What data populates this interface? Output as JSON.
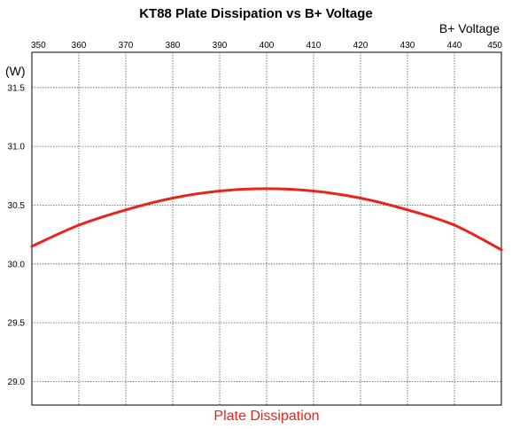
{
  "chart_data": {
    "type": "line",
    "title": "KT88 Plate Dissipation vs B+ Voltage",
    "xlabel": "B+ Voltage",
    "ylabel": "(W)",
    "xlim": [
      350,
      450
    ],
    "ylim": [
      28.8,
      31.8
    ],
    "xticks": [
      "350",
      "360",
      "370",
      "380",
      "390",
      "400",
      "410",
      "420",
      "430",
      "440",
      "450"
    ],
    "yticks": [
      "29.0",
      "29.5",
      "30.0",
      "30.5",
      "31.0",
      "31.5"
    ],
    "x_axis_position": "top",
    "grid": true,
    "legend": "bottom-center",
    "colors": {
      "series": "#e8241c",
      "legend_text": "#e8241c",
      "grid": "#555555"
    },
    "series": [
      {
        "name": "Plate Dissipation",
        "x": [
          350,
          360,
          370,
          380,
          390,
          400,
          410,
          420,
          430,
          440,
          450
        ],
        "y": [
          30.15,
          30.33,
          30.46,
          30.56,
          30.62,
          30.64,
          30.62,
          30.56,
          30.46,
          30.33,
          30.12
        ]
      }
    ]
  }
}
